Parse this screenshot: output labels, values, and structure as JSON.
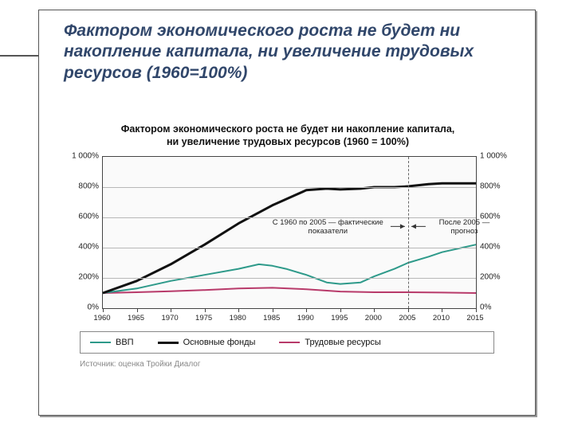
{
  "slide": {
    "title": "Фактором экономического роста не будет ни накопление капитала, ни увеличение трудовых ресурсов (1960=100%)"
  },
  "chart": {
    "type": "line",
    "title_line1": "Фактором экономического роста не будет ни накопление капитала,",
    "title_line2": "ни увеличение трудовых ресурсов (1960 = 100%)",
    "background_color": "#fafafa",
    "grid_color": "#b8b8b8",
    "border_color": "#444444",
    "ylim_min": 0,
    "ylim_max": 1000,
    "ytick_step": 200,
    "yticks": [
      {
        "v": 0,
        "label": "0%"
      },
      {
        "v": 200,
        "label": "200%"
      },
      {
        "v": 400,
        "label": "400%"
      },
      {
        "v": 600,
        "label": "600%"
      },
      {
        "v": 800,
        "label": "800%"
      },
      {
        "v": 1000,
        "label": "1 000%"
      }
    ],
    "x_min": 1960,
    "x_max": 2015,
    "xticks": [
      1960,
      1965,
      1970,
      1975,
      1980,
      1985,
      1990,
      1995,
      2000,
      2005,
      2010,
      2015
    ],
    "vline_x": 2005,
    "annotation_left": "С 1960 по 2005 — фактические показатели",
    "annotation_right": "После 2005 — прогноз",
    "series": {
      "gdp": {
        "color": "#2e9a8a",
        "width": 2,
        "points": [
          {
            "x": 1960,
            "y": 100
          },
          {
            "x": 1965,
            "y": 130
          },
          {
            "x": 1970,
            "y": 180
          },
          {
            "x": 1975,
            "y": 220
          },
          {
            "x": 1980,
            "y": 260
          },
          {
            "x": 1983,
            "y": 290
          },
          {
            "x": 1985,
            "y": 280
          },
          {
            "x": 1987,
            "y": 260
          },
          {
            "x": 1990,
            "y": 220
          },
          {
            "x": 1993,
            "y": 170
          },
          {
            "x": 1995,
            "y": 160
          },
          {
            "x": 1998,
            "y": 170
          },
          {
            "x": 2000,
            "y": 210
          },
          {
            "x": 2003,
            "y": 260
          },
          {
            "x": 2005,
            "y": 300
          },
          {
            "x": 2008,
            "y": 340
          },
          {
            "x": 2010,
            "y": 370
          },
          {
            "x": 2013,
            "y": 400
          },
          {
            "x": 2015,
            "y": 420
          }
        ]
      },
      "capital": {
        "color": "#111111",
        "width": 3,
        "points": [
          {
            "x": 1960,
            "y": 100
          },
          {
            "x": 1965,
            "y": 180
          },
          {
            "x": 1970,
            "y": 290
          },
          {
            "x": 1975,
            "y": 420
          },
          {
            "x": 1980,
            "y": 560
          },
          {
            "x": 1985,
            "y": 680
          },
          {
            "x": 1988,
            "y": 740
          },
          {
            "x": 1990,
            "y": 780
          },
          {
            "x": 1993,
            "y": 790
          },
          {
            "x": 1995,
            "y": 785
          },
          {
            "x": 1998,
            "y": 790
          },
          {
            "x": 2000,
            "y": 800
          },
          {
            "x": 2003,
            "y": 800
          },
          {
            "x": 2005,
            "y": 805
          },
          {
            "x": 2008,
            "y": 820
          },
          {
            "x": 2010,
            "y": 825
          },
          {
            "x": 2015,
            "y": 825
          }
        ]
      },
      "labor": {
        "color": "#b83a6a",
        "width": 2,
        "points": [
          {
            "x": 1960,
            "y": 100
          },
          {
            "x": 1965,
            "y": 105
          },
          {
            "x": 1970,
            "y": 112
          },
          {
            "x": 1975,
            "y": 120
          },
          {
            "x": 1980,
            "y": 130
          },
          {
            "x": 1985,
            "y": 135
          },
          {
            "x": 1990,
            "y": 125
          },
          {
            "x": 1995,
            "y": 110
          },
          {
            "x": 2000,
            "y": 105
          },
          {
            "x": 2005,
            "y": 105
          },
          {
            "x": 2010,
            "y": 103
          },
          {
            "x": 2015,
            "y": 100
          }
        ]
      }
    },
    "legend": [
      {
        "label": "ВВП",
        "color": "#2e9a8a",
        "width": 2
      },
      {
        "label": "Основные фонды",
        "color": "#111111",
        "width": 3
      },
      {
        "label": "Трудовые ресурсы",
        "color": "#b83a6a",
        "width": 2
      }
    ],
    "source": "Источник: оценка Тройки Диалог"
  }
}
